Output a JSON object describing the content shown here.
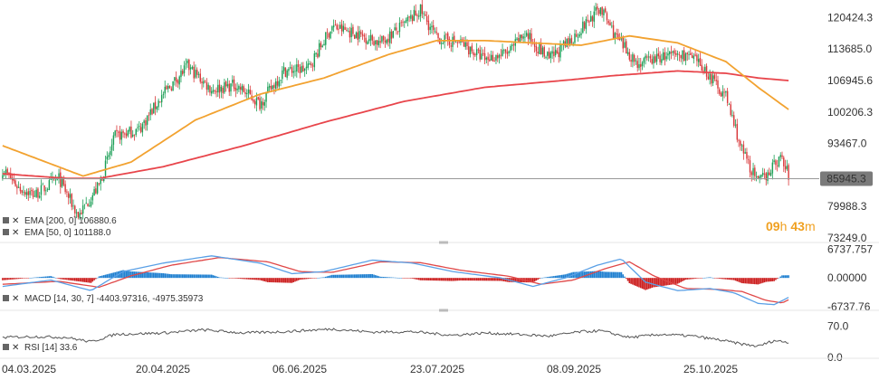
{
  "colors": {
    "bull": "#1a9e55",
    "bear": "#d9383a",
    "ema200": "#e8454b",
    "ema50": "#f2a230",
    "macd_line": "#5aa0e6",
    "macd_signal": "#e04848",
    "hist_pos": "#1e7fd0",
    "hist_neg": "#cc1f1f",
    "rsi": "#555555",
    "price_tag_bg": "#7a7a7a",
    "price_tag_text": "#ffffff",
    "timer": "#f0a020"
  },
  "price_tag": "85945.3",
  "timer": {
    "hours": "09",
    "h_label": "h",
    "minutes": "43",
    "m_label": "m"
  },
  "x_labels": [
    "04.03.2025",
    "20.04.2025",
    "06.06.2025",
    "23.07.2025",
    "08.09.2025",
    "25.10.2025"
  ],
  "price_ticks": [
    "120424.3",
    "113685.0",
    "106945.6",
    "100206.3",
    "93467.0",
    "79988.3",
    "73249.0"
  ],
  "macd_ticks": [
    "6737.757",
    "0.00000",
    "-6737.76"
  ],
  "rsi_ticks": [
    "70.0",
    "0.0"
  ],
  "legends": {
    "ema200": "EMA [200, 0] 106880.6",
    "ema50": "EMA [50, 0] 101188.0",
    "macd": "MACD [14, 30, 7]  -4403.97316,  -4975.35973",
    "rsi": "RSI [14]  33.6"
  },
  "chart_data": {
    "type": "candlestick",
    "x_range": [
      "04.03.2025",
      "10.12.2025"
    ],
    "y_range": [
      73249.0,
      123800
    ],
    "grid": false,
    "last_price": 85945.3,
    "price_anchors": [
      [
        0,
        88000
      ],
      [
        10,
        84000
      ],
      [
        20,
        82500
      ],
      [
        35,
        86000
      ],
      [
        47,
        78000
      ],
      [
        60,
        84500
      ],
      [
        70,
        95000
      ],
      [
        85,
        96500
      ],
      [
        100,
        104000
      ],
      [
        115,
        110000
      ],
      [
        130,
        105000
      ],
      [
        145,
        106000
      ],
      [
        160,
        102000
      ],
      [
        175,
        109000
      ],
      [
        190,
        109500
      ],
      [
        205,
        118500
      ],
      [
        220,
        117000
      ],
      [
        235,
        115000
      ],
      [
        250,
        119000
      ],
      [
        260,
        122000
      ],
      [
        270,
        116000
      ],
      [
        285,
        115000
      ],
      [
        300,
        111500
      ],
      [
        315,
        113000
      ],
      [
        325,
        117000
      ],
      [
        340,
        111500
      ],
      [
        352,
        115000
      ],
      [
        365,
        120000
      ],
      [
        372,
        122500
      ],
      [
        382,
        116000
      ],
      [
        395,
        110500
      ],
      [
        410,
        112000
      ],
      [
        425,
        112500
      ],
      [
        435,
        110000
      ],
      [
        450,
        103500
      ],
      [
        460,
        92000
      ],
      [
        470,
        85000
      ],
      [
        478,
        88000
      ],
      [
        484,
        90500
      ],
      [
        490,
        86000
      ]
    ],
    "ema50_anchors": [
      [
        0,
        93000
      ],
      [
        50,
        86500
      ],
      [
        80,
        89500
      ],
      [
        120,
        98500
      ],
      [
        160,
        104000
      ],
      [
        200,
        107500
      ],
      [
        240,
        112500
      ],
      [
        270,
        115500
      ],
      [
        300,
        115500
      ],
      [
        330,
        115000
      ],
      [
        360,
        114500
      ],
      [
        390,
        116500
      ],
      [
        420,
        115000
      ],
      [
        450,
        111000
      ],
      [
        470,
        105500
      ],
      [
        490,
        100500
      ]
    ],
    "ema200_anchors": [
      [
        0,
        87000
      ],
      [
        40,
        86000
      ],
      [
        60,
        86000
      ],
      [
        100,
        88500
      ],
      [
        150,
        93000
      ],
      [
        200,
        98000
      ],
      [
        250,
        102500
      ],
      [
        300,
        105500
      ],
      [
        350,
        107000
      ],
      [
        380,
        108000
      ],
      [
        420,
        109000
      ],
      [
        450,
        108500
      ],
      [
        470,
        107500
      ],
      [
        490,
        106900
      ]
    ],
    "macd_range": [
      -7000,
      7500
    ],
    "macd_anchors": [
      [
        0,
        -2000
      ],
      [
        30,
        -500
      ],
      [
        55,
        -3000
      ],
      [
        75,
        1500
      ],
      [
        100,
        3500
      ],
      [
        130,
        5200
      ],
      [
        160,
        3500
      ],
      [
        180,
        1000
      ],
      [
        200,
        1500
      ],
      [
        230,
        4200
      ],
      [
        255,
        3500
      ],
      [
        280,
        1500
      ],
      [
        310,
        0
      ],
      [
        330,
        -2000
      ],
      [
        350,
        0
      ],
      [
        370,
        3000
      ],
      [
        385,
        4500
      ],
      [
        400,
        -1000
      ],
      [
        420,
        -3000
      ],
      [
        440,
        -2500
      ],
      [
        455,
        -3500
      ],
      [
        470,
        -6000
      ],
      [
        480,
        -6300
      ],
      [
        490,
        -4400
      ]
    ],
    "signal_anchors": [
      [
        0,
        -1500
      ],
      [
        35,
        -800
      ],
      [
        60,
        -2200
      ],
      [
        80,
        500
      ],
      [
        105,
        3000
      ],
      [
        135,
        4800
      ],
      [
        165,
        3800
      ],
      [
        185,
        1500
      ],
      [
        205,
        1300
      ],
      [
        235,
        3800
      ],
      [
        260,
        3600
      ],
      [
        285,
        1800
      ],
      [
        315,
        400
      ],
      [
        335,
        -1500
      ],
      [
        355,
        -500
      ],
      [
        375,
        2200
      ],
      [
        390,
        3800
      ],
      [
        405,
        500
      ],
      [
        425,
        -2500
      ],
      [
        445,
        -2700
      ],
      [
        460,
        -3200
      ],
      [
        475,
        -5300
      ],
      [
        485,
        -5900
      ],
      [
        490,
        -4975
      ]
    ],
    "rsi_range": [
      0,
      100
    ],
    "rsi_anchors": [
      [
        0,
        45
      ],
      [
        20,
        47
      ],
      [
        40,
        45
      ],
      [
        55,
        35
      ],
      [
        70,
        52
      ],
      [
        100,
        55
      ],
      [
        125,
        62
      ],
      [
        150,
        55
      ],
      [
        175,
        58
      ],
      [
        205,
        64
      ],
      [
        230,
        57
      ],
      [
        255,
        58
      ],
      [
        280,
        50
      ],
      [
        300,
        55
      ],
      [
        320,
        52
      ],
      [
        340,
        48
      ],
      [
        360,
        58
      ],
      [
        372,
        60
      ],
      [
        390,
        45
      ],
      [
        410,
        52
      ],
      [
        430,
        48
      ],
      [
        445,
        40
      ],
      [
        460,
        30
      ],
      [
        470,
        25
      ],
      [
        480,
        38
      ],
      [
        490,
        33.6
      ]
    ],
    "num_candles": 490
  }
}
